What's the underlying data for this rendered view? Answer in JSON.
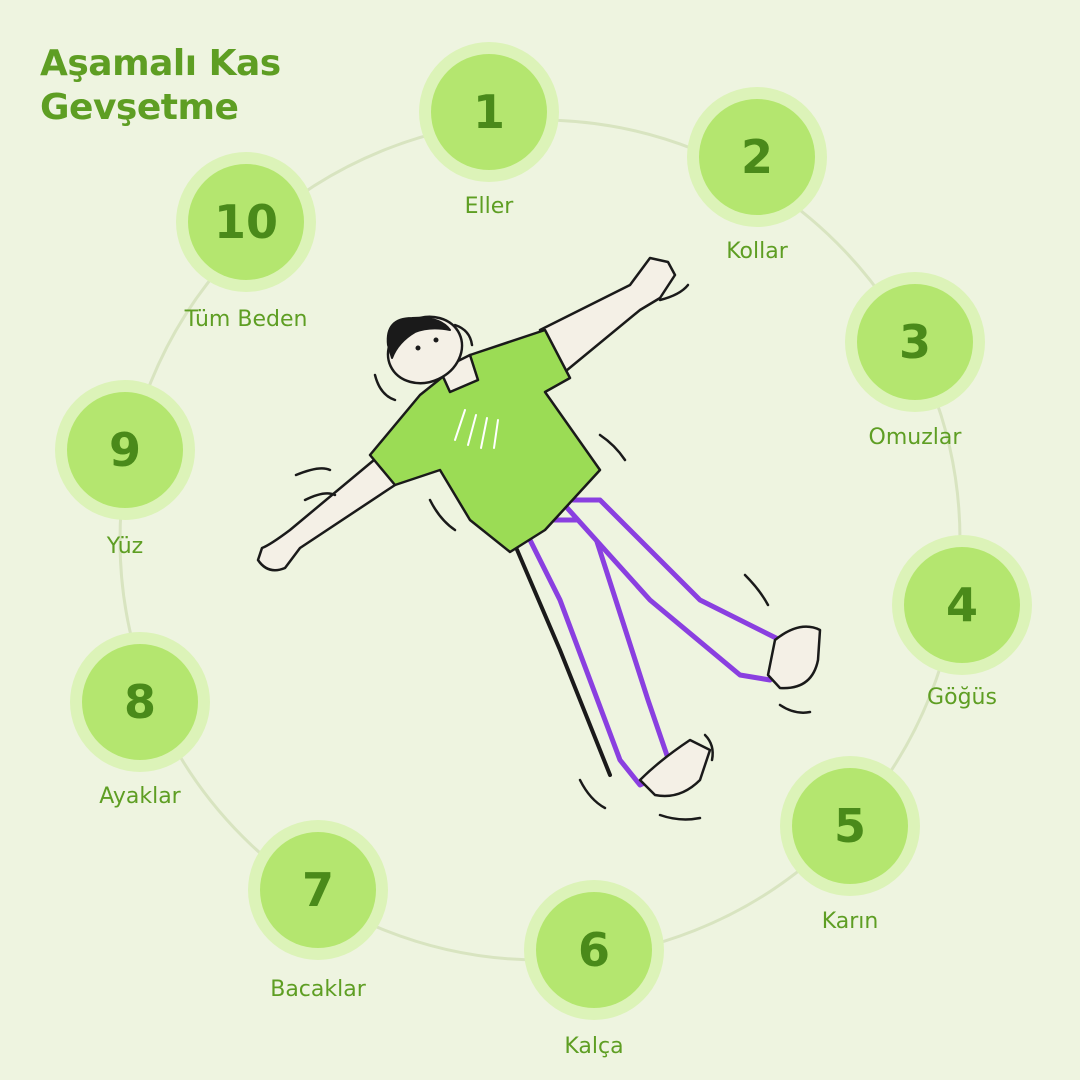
{
  "title": {
    "line1": "Aşamalı Kas",
    "line2": "Gevşetme"
  },
  "steps": [
    {
      "number": "1",
      "label": "Eller"
    },
    {
      "number": "2",
      "label": "Kollar"
    },
    {
      "number": "3",
      "label": "Omuzlar"
    },
    {
      "number": "4",
      "label": "Göğüs"
    },
    {
      "number": "5",
      "label": "Karın"
    },
    {
      "number": "6",
      "label": "Kalça"
    },
    {
      "number": "7",
      "label": "Bacaklar"
    },
    {
      "number": "8",
      "label": "Ayaklar"
    },
    {
      "number": "9",
      "label": "Yüz"
    },
    {
      "number": "10",
      "label": "Tüm Beden"
    }
  ],
  "colors": {
    "background": "#eef4e0",
    "accent": "#5e9e23",
    "disc": "#b4e66f",
    "halo": "#dcf3b8",
    "shirt": "#9bdc55",
    "pants": "#8a3fe0"
  },
  "illustration": "person-lying-relaxed"
}
